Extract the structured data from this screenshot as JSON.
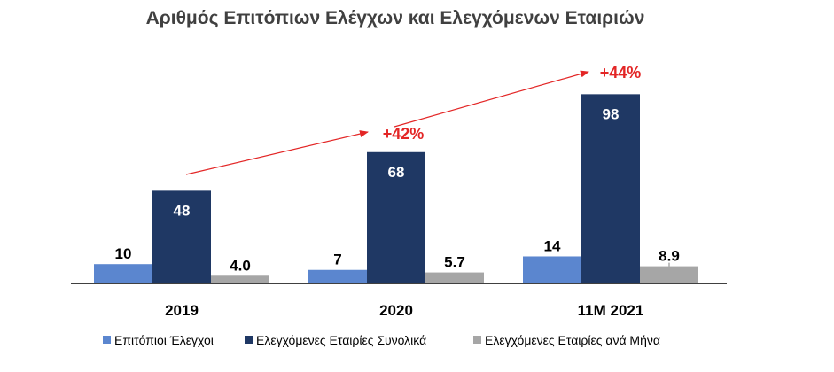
{
  "chart_data": {
    "type": "bar",
    "title": "Αριθμός Επιτόπιων Ελέγχων και Ελεγχόμενων Εταιριών",
    "categories": [
      "2019",
      "2020",
      "11M 2021"
    ],
    "series": [
      {
        "name": "Επιτόπιοι Έλεγχοι",
        "values": [
          10,
          7,
          14
        ],
        "labels": [
          "10",
          "7",
          "14"
        ],
        "color": "#5b86cf"
      },
      {
        "name": "Ελεγχόμενες Εταιρίες Συνολικά",
        "values": [
          48,
          68,
          98
        ],
        "labels": [
          "48",
          "68",
          "98"
        ],
        "color": "#1f3864"
      },
      {
        "name": "Ελεγχόμενες Εταιρίες ανά Μήνα",
        "values": [
          4.0,
          5.7,
          8.9
        ],
        "labels": [
          "4.0",
          "5.7",
          "8.9"
        ],
        "color": "#a6a6a6"
      }
    ],
    "ylim": [
      0,
      100
    ],
    "grid": false,
    "legend": "bottom",
    "growth_annotations": [
      {
        "from": "2019",
        "to": "2020",
        "label": "+42%"
      },
      {
        "from": "2020",
        "to": "11M 2021",
        "label": "+44%"
      }
    ],
    "annotation_color": "#e32626"
  }
}
